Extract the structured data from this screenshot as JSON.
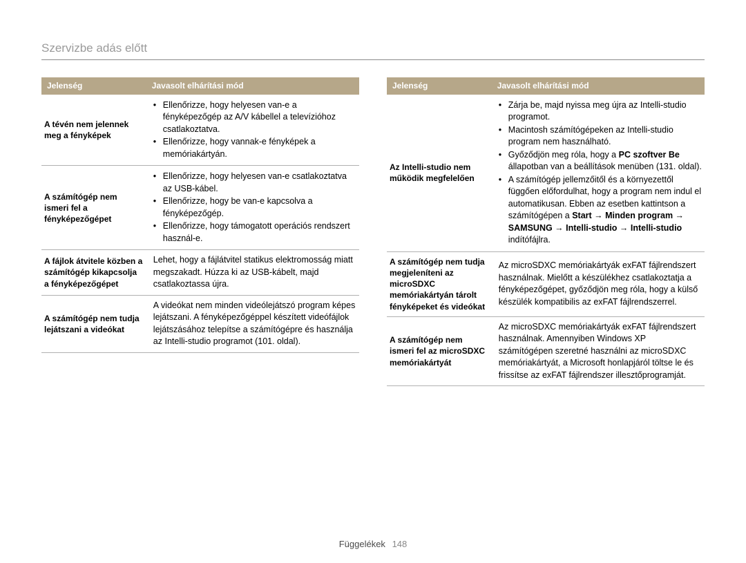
{
  "page": {
    "title": "Szervizbe adás előtt",
    "footer_label": "Függelékek",
    "page_number": "148"
  },
  "headers": {
    "col1": "Jelenség",
    "col2": "Javasolt elhárítási mód"
  },
  "left_table": {
    "rows": [
      {
        "label": "A tévén nem jelennek meg a fényképek",
        "bullets": [
          "Ellenőrizze, hogy helyesen van-e a fényképezőgép az A/V kábellel a televízióhoz csatlakoztatva.",
          "Ellenőrizze, hogy vannak-e fényképek a memóriakártyán."
        ]
      },
      {
        "label": "A számítógép nem ismeri fel a fényképezőgépet",
        "bullets": [
          "Ellenőrizze, hogy helyesen van-e csatlakoztatva az USB-kábel.",
          "Ellenőrizze, hogy be van-e kapcsolva a fényképezőgép.",
          "Ellenőrizze, hogy támogatott operációs rendszert használ-e."
        ]
      },
      {
        "label": "A fájlok átvitele közben a számítógép kikapcsolja a fényképezőgépet",
        "plain": "Lehet, hogy a fájlátvitel statikus elektromosság miatt megszakadt. Húzza ki az USB-kábelt, majd csatlakoztassa újra."
      },
      {
        "label": "A számítógép nem tudja lejátszani a videókat",
        "plain": "A videókat nem minden videólejátszó program képes lejátszani. A fényképezőgéppel készített videófájlok lejátszásához telepítse a számítógépre és használja az Intelli-studio programot (101. oldal)."
      }
    ]
  },
  "right_table": {
    "rows": [
      {
        "label": "Az Intelli-studio nem működik megfelelően",
        "bullets_html": [
          "Zárja be, majd nyissa meg újra az Intelli-studio programot.",
          "Macintosh számítógépeken az Intelli-studio program nem használható.",
          "Győződjön meg róla, hogy a <b>PC szoftver Be</b> állapotban van a beállítások menüben (131. oldal).",
          "A számítógép jellemzőitől és a környezettől függően előfordulhat, hogy a program nem indul el automatikusan. Ebben az esetben kattintson a számítógépen a <b>Start → Minden program → SAMSUNG → Intelli-studio → Intelli-studio</b> indítófájlra."
        ]
      },
      {
        "label": "A számítógép nem tudja megjeleníteni az microSDXC memóriakártyán tárolt fényképeket és videókat",
        "plain": "Az microSDXC memóriakártyák exFAT fájlrendszert használnak. Mielőtt a készülékhez csatlakoztatja a fényképezőgépet, győződjön meg róla, hogy a külső készülék kompatibilis az exFAT fájlrendszerrel."
      },
      {
        "label": "A számítógép nem ismeri fel az microSDXC memóriakártyát",
        "plain": "Az microSDXC memóriakártyák exFAT fájlrendszert használnak. Amennyiben Windows XP számítógépen szeretné használni az microSDXC memóriakártyát, a Microsoft honlapjáról töltse le és frissítse az exFAT fájlrendszer illesztőprogramját."
      }
    ]
  }
}
